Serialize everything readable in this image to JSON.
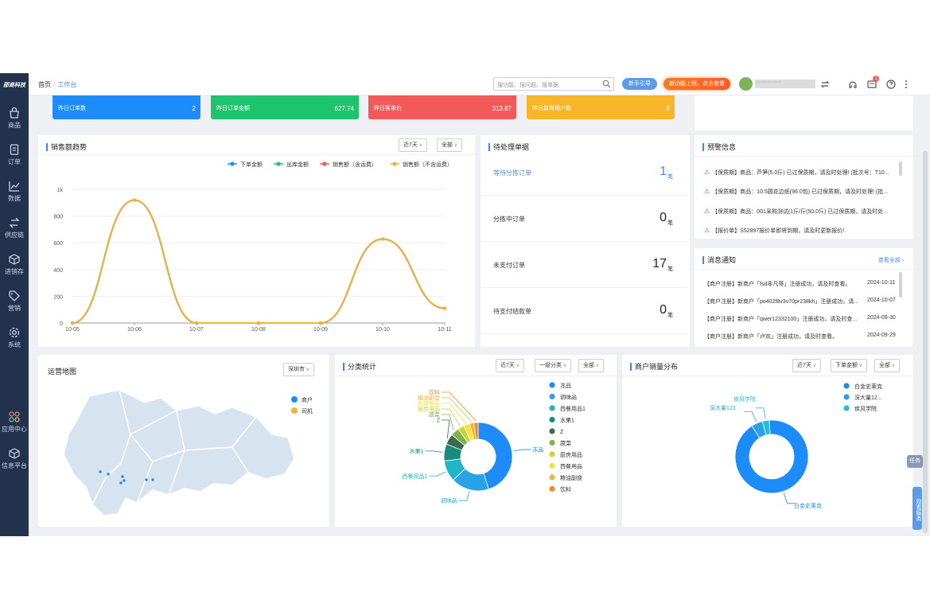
{
  "sidebar": {
    "logo": "邵商科技",
    "items": [
      {
        "label": "商品",
        "icon": "bag-icon"
      },
      {
        "label": "订单",
        "icon": "order-icon"
      },
      {
        "label": "数据",
        "icon": "chart-icon"
      },
      {
        "label": "供应链",
        "icon": "exchange-icon"
      },
      {
        "label": "进销存",
        "icon": "box-icon"
      },
      {
        "label": "营销",
        "icon": "tag-icon"
      },
      {
        "label": "系统",
        "icon": "gear-icon"
      },
      {
        "label": "应用中心",
        "icon": "apps-icon"
      },
      {
        "label": "信息平台",
        "icon": "cube-icon"
      }
    ]
  },
  "header": {
    "breadcrumb_home": "首页",
    "breadcrumb_current": "工作台",
    "search_placeholder": "搜功能、搜问题、搜单据",
    "guide_button": "新手引导",
    "new_feature_button": "新功能上线，点击查看",
    "user_name": "··············",
    "notification_count": "1"
  },
  "kpis": [
    {
      "label": "昨日订单数",
      "value": "2",
      "color": "#1d8cf8"
    },
    {
      "label": "昨日订单金额",
      "value": "627.74",
      "color": "#1cc46d"
    },
    {
      "label": "昨日客单价",
      "value": "313.87",
      "color": "#f25a5a"
    },
    {
      "label": "昨日新增用户数",
      "value": "0",
      "color": "#f7b52a"
    }
  ],
  "sales": {
    "title": "销售额趋势",
    "period": "近7天",
    "scope": "全部",
    "legend": [
      "下单金额",
      "出库金额",
      "销售额（含运费）",
      "销售额（不含运费）"
    ],
    "yticks": [
      "1k",
      "800",
      "600",
      "400",
      "200",
      "0"
    ]
  },
  "chart_data": {
    "type": "line",
    "x": [
      "10-05",
      "10-06",
      "10-07",
      "10-08",
      "10-09",
      "10-10",
      "10-11"
    ],
    "ylim": [
      0,
      1000
    ],
    "series": [
      {
        "name": "下单金额",
        "color": "#1d8cf8",
        "values": [
          0,
          920,
          0,
          0,
          0,
          627.74,
          110
        ]
      },
      {
        "name": "出库金额",
        "color": "#1cc46d",
        "values": [
          0,
          920,
          0,
          0,
          0,
          627.74,
          110
        ]
      },
      {
        "name": "销售额（含运费）",
        "color": "#f25a5a",
        "values": [
          0,
          920,
          0,
          0,
          0,
          627.74,
          110
        ]
      },
      {
        "name": "销售额（不含运费）",
        "color": "#f0b43a",
        "values": [
          0,
          920,
          0,
          0,
          0,
          627.74,
          110
        ]
      }
    ]
  },
  "pending": {
    "title": "待处理单据",
    "rows": [
      {
        "label": "等待分拣订单",
        "value": "1",
        "unit": "笔",
        "highlight": true
      },
      {
        "label": "分拣中订单",
        "value": "0",
        "unit": "笔",
        "highlight": false
      },
      {
        "label": "未支付订单",
        "value": "17",
        "unit": "笔",
        "highlight": false
      },
      {
        "label": "待支付结款单",
        "value": "0",
        "unit": "笔",
        "highlight": false
      }
    ]
  },
  "warnings": {
    "title": "预警信息",
    "items": [
      "【保质期】商品：芦笋(5.0斤) 已过保质期，请及时处理! (批次号：T10...",
      "【保质期】商品：10.5圆花边纸(96.0包) 已过保质期，请及时处理! (批...",
      "【保质期】商品：001采购测试(1斤/斤(50.0斤) 已过保质期，请及时处...",
      "【报价单】S52897报价单即将到期，请及时更新报价!"
    ]
  },
  "messages": {
    "title": "消息通知",
    "view_all": "查看全部",
    "items": [
      {
        "text": "【商户注册】新商户「fsd非凡哥」注册成功，请及时查看。",
        "date": "2024-10-11"
      },
      {
        "text": "【商户注册】新商户「po402f8v3v70pr238kh」注册成功，请...",
        "date": "2024-10-07"
      },
      {
        "text": "【商户注册】新商户「qwer12332100」注册成功，请及时查...",
        "date": "2024-09-30"
      },
      {
        "text": "【商户注册】新商户「卢欢」注册成功，请及时查看。",
        "date": "2024-09-29"
      }
    ]
  },
  "map": {
    "title": "运营地图",
    "city": "深圳市",
    "legend": [
      {
        "label": "商户",
        "color": "#1d8cf8"
      },
      {
        "label": "司机",
        "color": "#f0b43a"
      }
    ]
  },
  "category": {
    "title": "分类统计",
    "period": "近7天",
    "level": "一级分类",
    "scope": "全部",
    "slices": [
      {
        "label": "冻品",
        "color": "#1d8cf8",
        "value": 45
      },
      {
        "label": "调味品",
        "color": "#29a3e8",
        "value": 18
      },
      {
        "label": "西餐用品1",
        "color": "#20b5c8",
        "value": 10
      },
      {
        "label": "水果1",
        "color": "#1a8a7a",
        "value": 8
      },
      {
        "label": "Z",
        "color": "#3a6b4a",
        "value": 5
      },
      {
        "label": "蔬菜",
        "color": "#7fb24a",
        "value": 4
      },
      {
        "label": "厨房用品",
        "color": "#c8d43a",
        "value": 3
      },
      {
        "label": "西餐用品",
        "color": "#f3e53a",
        "value": 3
      },
      {
        "label": "粮油副食",
        "color": "#f0b43a",
        "value": 2
      },
      {
        "label": "饮料",
        "color": "#f08a2a",
        "value": 2
      }
    ]
  },
  "merchant": {
    "title": "商户销量分布",
    "period": "近7天",
    "metric": "下单金额",
    "scope": "全部",
    "slices": [
      {
        "label": "白金史莱克",
        "color": "#1d8cf8",
        "value": 92
      },
      {
        "label": "深大量12...",
        "color": "#29a3e8",
        "value": 5
      },
      {
        "label": "疾风学院",
        "color": "#20c0d8",
        "value": 3
      }
    ],
    "callouts": [
      "疾风学院",
      "深大量123",
      "白金史莱克"
    ]
  },
  "float": {
    "task": "任务",
    "service": "观看服务"
  }
}
